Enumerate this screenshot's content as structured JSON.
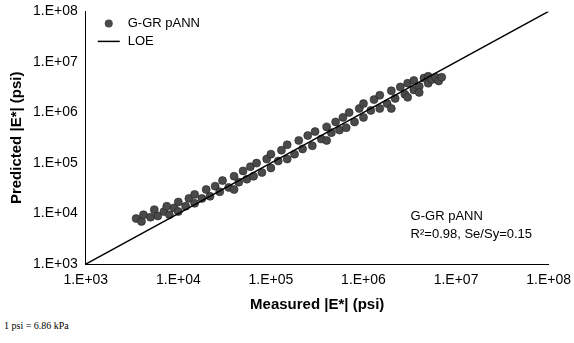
{
  "chart_data": {
    "type": "scatter",
    "x_label": "Measured |E*| (psi)",
    "y_label": "Predicted |E*| (psi)",
    "log": true,
    "grid": false,
    "legend": "top-left",
    "xlim": [
      1000,
      100000000
    ],
    "ylim": [
      1000,
      100000000
    ],
    "xticks": [
      {
        "value": 1000,
        "label": "1.E+03"
      },
      {
        "value": 10000,
        "label": "1.E+04"
      },
      {
        "value": 100000,
        "label": "1.E+05"
      },
      {
        "value": 1000000,
        "label": "1.E+06"
      },
      {
        "value": 10000000,
        "label": "1.E+07"
      },
      {
        "value": 100000000,
        "label": "1.E+08"
      }
    ],
    "yticks": [
      {
        "value": 1000,
        "label": "1.E+03"
      },
      {
        "value": 10000,
        "label": "1.E+04"
      },
      {
        "value": 100000,
        "label": "1.E+05"
      },
      {
        "value": 1000000,
        "label": "1.E+06"
      },
      {
        "value": 10000000,
        "label": "1.E+07"
      },
      {
        "value": 100000000,
        "label": "1.E+08"
      }
    ],
    "annotation": [
      "G-GR pANN",
      "R²=0.98, Se/Sy=0.15"
    ],
    "footnote": "1 psi = 6.86 kPa",
    "series": [
      {
        "name": "G-GR pANN",
        "type": "scatter",
        "marker": "circle",
        "color": "#4a4a4a",
        "x": [
          3500,
          4000,
          4200,
          5000,
          5500,
          6000,
          7000,
          7500,
          8000,
          9000,
          10000,
          10000,
          12000,
          13000,
          15000,
          15000,
          18000,
          20000,
          22000,
          25000,
          28000,
          30000,
          35000,
          40000,
          40000,
          45000,
          50000,
          55000,
          60000,
          65000,
          70000,
          80000,
          90000,
          100000,
          100000,
          120000,
          130000,
          150000,
          150000,
          180000,
          200000,
          220000,
          250000,
          280000,
          300000,
          350000,
          400000,
          400000,
          450000,
          500000,
          550000,
          600000,
          650000,
          700000,
          800000,
          900000,
          1000000,
          1000000,
          1200000,
          1300000,
          1500000,
          1500000,
          1800000,
          2000000,
          2200000,
          2500000,
          2800000,
          3000000,
          3500000,
          3500000,
          4000000,
          4500000,
          5000000,
          5000000,
          5500000,
          6000000,
          6500000,
          7000000,
          2000000,
          3000000,
          4000000
        ],
        "values": [
          8000,
          7000,
          9500,
          8500,
          12000,
          9000,
          11000,
          14000,
          9500,
          13000,
          11000,
          17000,
          14000,
          20000,
          16000,
          24000,
          20000,
          30000,
          22000,
          35000,
          27000,
          45000,
          33000,
          55000,
          30000,
          42000,
          70000,
          48000,
          85000,
          55000,
          100000,
          65000,
          120000,
          80000,
          150000,
          110000,
          180000,
          120000,
          230000,
          150000,
          280000,
          190000,
          350000,
          220000,
          420000,
          300000,
          520000,
          280000,
          400000,
          650000,
          450000,
          800000,
          500000,
          1000000,
          650000,
          1200000,
          800000,
          1500000,
          1100000,
          1800000,
          1200000,
          2200000,
          1500000,
          2700000,
          1900000,
          3200000,
          2300000,
          3800000,
          2800000,
          4300000,
          3300000,
          4800000,
          3800000,
          5200000,
          4500000,
          5000000,
          4200000,
          5000000,
          1200000,
          2000000,
          2500000
        ]
      },
      {
        "name": "LOE",
        "type": "line",
        "line_style": "solid",
        "color": "#000000",
        "x": [
          1000,
          100000000
        ],
        "values": [
          1000,
          100000000
        ]
      }
    ]
  }
}
